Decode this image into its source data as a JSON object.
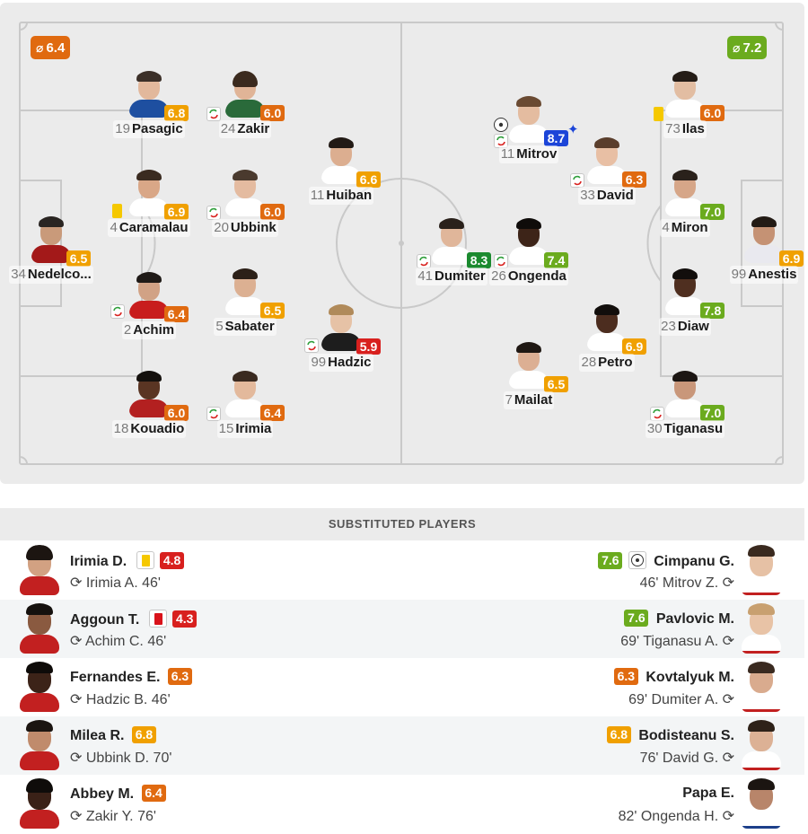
{
  "colors": {
    "orange": "#e06a10",
    "amber": "#f0a000",
    "light_green": "#6bab1e",
    "dark_green": "#1b8a2f",
    "blue": "#1c45d8",
    "red": "#d8201e"
  },
  "home_team": {
    "average_rating": "6.4",
    "average_symbol": "⌀",
    "players": [
      {
        "num": "34",
        "name": "Nedelco...",
        "rating": "6.5"
      },
      {
        "num": "19",
        "name": "Pasagic",
        "rating": "6.8"
      },
      {
        "num": "4",
        "name": "Caramalau",
        "rating": "6.9"
      },
      {
        "num": "2",
        "name": "Achim",
        "rating": "6.4"
      },
      {
        "num": "18",
        "name": "Kouadio",
        "rating": "6.0"
      },
      {
        "num": "24",
        "name": "Zakir",
        "rating": "6.0"
      },
      {
        "num": "20",
        "name": "Ubbink",
        "rating": "6.0"
      },
      {
        "num": "5",
        "name": "Sabater",
        "rating": "6.5"
      },
      {
        "num": "15",
        "name": "Irimia",
        "rating": "6.4"
      },
      {
        "num": "11",
        "name": "Huiban",
        "rating": "6.6"
      },
      {
        "num": "99",
        "name": "Hadzic",
        "rating": "5.9"
      }
    ]
  },
  "away_team": {
    "average_rating": "7.2",
    "average_symbol": "⌀",
    "players": [
      {
        "num": "99",
        "name": "Anestis",
        "rating": "6.9"
      },
      {
        "num": "73",
        "name": "Ilas",
        "rating": "6.0"
      },
      {
        "num": "4",
        "name": "Miron",
        "rating": "7.0"
      },
      {
        "num": "23",
        "name": "Diaw",
        "rating": "7.8"
      },
      {
        "num": "30",
        "name": "Tiganasu",
        "rating": "7.0"
      },
      {
        "num": "33",
        "name": "David",
        "rating": "6.3"
      },
      {
        "num": "28",
        "name": "Petro",
        "rating": "6.9"
      },
      {
        "num": "11",
        "name": "Mitrov",
        "rating": "8.7"
      },
      {
        "num": "41",
        "name": "Dumiter",
        "rating": "8.3"
      },
      {
        "num": "26",
        "name": "Ongenda",
        "rating": "7.4"
      },
      {
        "num": "7",
        "name": "Mailat",
        "rating": "6.5"
      }
    ]
  },
  "substitutes": {
    "title": "SUBSTITUTED PLAYERS",
    "home": [
      {
        "name": "Irimia D.",
        "rating": "4.8",
        "replaced": "Irimia A. 46'"
      },
      {
        "name": "Aggoun T.",
        "rating": "4.3",
        "replaced": "Achim C. 46'"
      },
      {
        "name": "Fernandes E.",
        "rating": "6.3",
        "replaced": "Hadzic B. 46'"
      },
      {
        "name": "Milea R.",
        "rating": "6.8",
        "replaced": "Ubbink D. 70'"
      },
      {
        "name": "Abbey M.",
        "rating": "6.4",
        "replaced": "Zakir Y. 76'"
      }
    ],
    "away": [
      {
        "name": "Cimpanu G.",
        "rating": "7.6",
        "replaced": "46' Mitrov Z."
      },
      {
        "name": "Pavlovic M.",
        "rating": "7.6",
        "replaced": "69' Tiganasu A."
      },
      {
        "name": "Kovtalyuk M.",
        "rating": "6.3",
        "replaced": "69' Dumiter A."
      },
      {
        "name": "Bodisteanu S.",
        "rating": "6.8",
        "replaced": "76' David G."
      },
      {
        "name": "Papa E.",
        "rating": "",
        "replaced": "82' Ongenda H."
      }
    ]
  }
}
